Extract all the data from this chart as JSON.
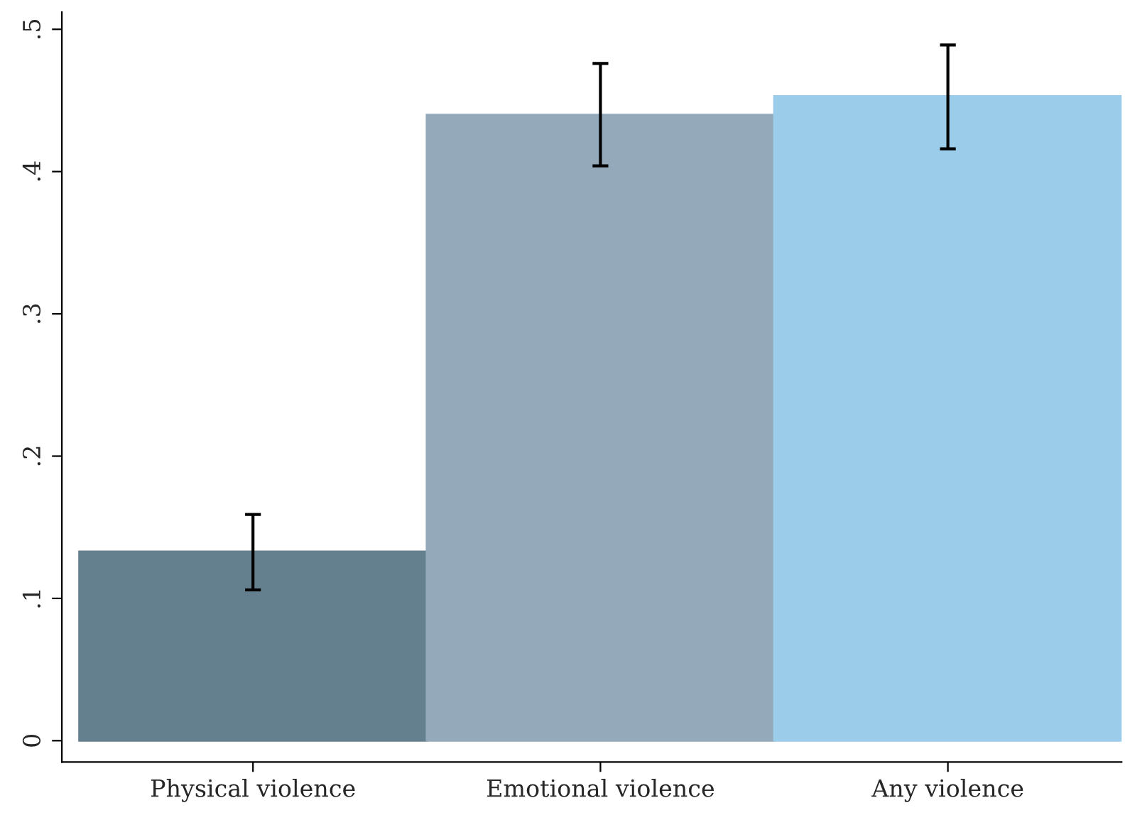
{
  "chart_data": {
    "type": "bar",
    "categories": [
      "Physical violence",
      "Emotional violence",
      "Any violence"
    ],
    "values": [
      0.133,
      0.44,
      0.453
    ],
    "colors": [
      "#64808f",
      "#94a9b9",
      "#9bcdeb"
    ],
    "errors": [
      [
        0.106,
        0.159
      ],
      [
        0.404,
        0.476
      ],
      [
        0.416,
        0.489
      ]
    ],
    "ylim": [
      -0.015,
      0.512
    ],
    "yticks": [
      {
        "value": 0,
        "label": "0"
      },
      {
        "value": 0.1,
        "label": ".1"
      },
      {
        "value": 0.2,
        "label": ".2"
      },
      {
        "value": 0.3,
        "label": ".3"
      },
      {
        "value": 0.4,
        "label": ".4"
      },
      {
        "value": 0.5,
        "label": ".5"
      }
    ],
    "grid": false,
    "legend": false
  }
}
